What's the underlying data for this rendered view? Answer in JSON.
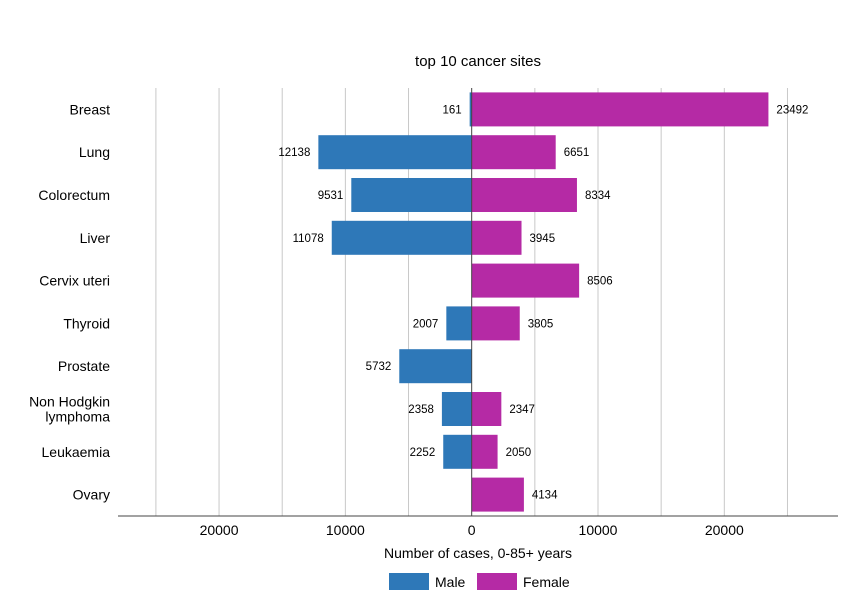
{
  "chart_data": {
    "type": "bar",
    "orientation": "horizontal-diverging",
    "title": "top 10 cancer sites",
    "xlabel": "Number of cases, 0-85+ years",
    "ylabel": "",
    "xlim": [
      -28000,
      29000
    ],
    "x_ticks": [
      -20000,
      -10000,
      0,
      10000,
      20000
    ],
    "x_tick_labels": [
      "20000",
      "10000",
      "0",
      "10000",
      "20000"
    ],
    "grid": "vertical",
    "legend_position": "bottom",
    "categories": [
      [
        "Breast"
      ],
      [
        "Lung"
      ],
      [
        "Colorectum"
      ],
      [
        "Liver"
      ],
      [
        "Cervix uteri"
      ],
      [
        "Thyroid"
      ],
      [
        "Prostate"
      ],
      [
        "Non Hodgkin",
        "lymphoma"
      ],
      [
        "Leukaemia"
      ],
      [
        "Ovary"
      ]
    ],
    "series": [
      {
        "name": "Male",
        "color": "#2e78b8",
        "side": "left",
        "values": [
          161,
          12138,
          9531,
          11078,
          null,
          2007,
          5732,
          2358,
          2252,
          null
        ]
      },
      {
        "name": "Female",
        "color": "#b52aa5",
        "side": "right",
        "values": [
          23492,
          6651,
          8334,
          3945,
          8506,
          3805,
          null,
          2347,
          2050,
          4134
        ]
      }
    ]
  }
}
